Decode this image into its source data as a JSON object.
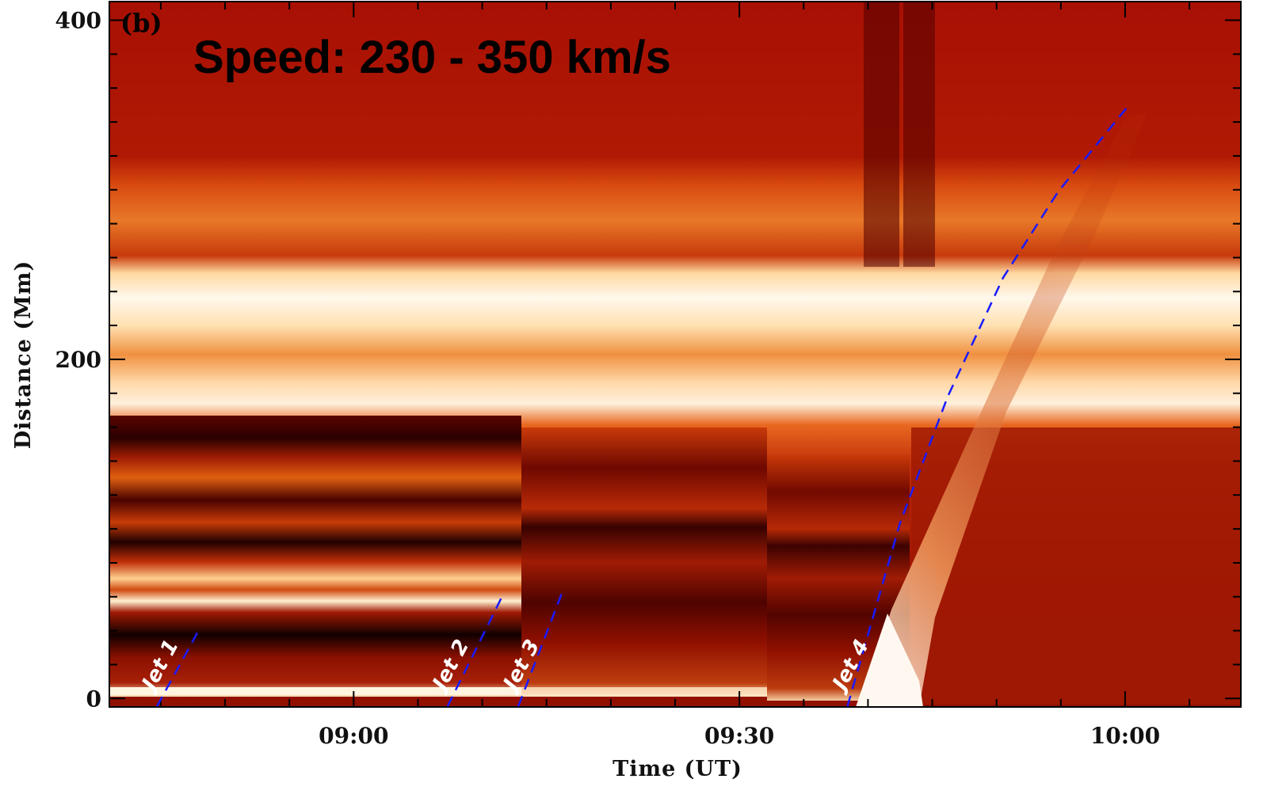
{
  "chart_data": {
    "type": "line",
    "panel_label": "(b)",
    "title": "Speed: 230 - 350 km/s",
    "xlabel": "Time (UT)",
    "ylabel": "Distance (Mm)",
    "xlim": [
      521,
      609
    ],
    "ylim": [
      -5,
      411
    ],
    "xticks": [
      {
        "value": 540,
        "label": "09:00"
      },
      {
        "value": 570,
        "label": "09:30"
      },
      {
        "value": 600,
        "label": "10:00"
      }
    ],
    "yticks": [
      0,
      200,
      400
    ],
    "xminorticks": [
      525,
      530,
      535,
      545,
      550,
      555,
      560,
      565,
      575,
      580,
      585,
      590,
      595,
      605
    ],
    "yminorticks": [
      20,
      40,
      60,
      80,
      100,
      120,
      140,
      160,
      180,
      220,
      240,
      260,
      280,
      300,
      320,
      340,
      360,
      380
    ],
    "line_style": "dashed",
    "series": [
      {
        "name": "Jet 1",
        "color": "#1a1aff",
        "x": [
          524.7,
          528.1
        ],
        "values": [
          -4.7,
          42.3
        ]
      },
      {
        "name": "Jet 2",
        "color": "#1a1aff",
        "x": [
          547.3,
          551.6
        ],
        "values": [
          -4.7,
          61
        ]
      },
      {
        "name": "Jet 3",
        "color": "#1a1aff",
        "x": [
          552.8,
          556.3
        ],
        "values": [
          -4.7,
          64.2
        ]
      },
      {
        "name": "Jet 4",
        "color": "#1a1aff",
        "x": [
          578.4,
          582.5,
          586.2,
          590.5,
          594.8,
          600.3
        ],
        "values": [
          -4.7,
          103.7,
          178,
          248,
          299,
          350
        ]
      }
    ]
  }
}
